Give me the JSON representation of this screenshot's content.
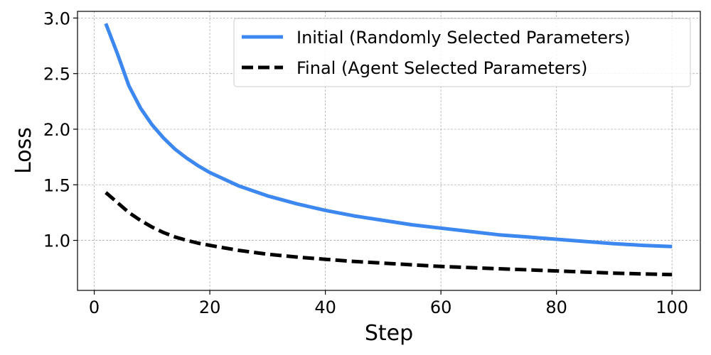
{
  "chart_data": {
    "type": "line",
    "title": "",
    "xlabel": "Step",
    "ylabel": "Loss",
    "xlim": [
      -2.9,
      104.9
    ],
    "ylim": [
      0.55,
      3.06
    ],
    "grid": true,
    "legend_position": "top-right",
    "xticks": [
      0,
      20,
      40,
      60,
      80,
      100
    ],
    "xtick_labels": [
      "0",
      "20",
      "40",
      "60",
      "80",
      "100"
    ],
    "yticks": [
      1.0,
      1.5,
      2.0,
      2.5,
      3.0
    ],
    "ytick_labels": [
      "1.0",
      "1.5",
      "2.0",
      "2.5",
      "3.0"
    ],
    "x": [
      2,
      4,
      6,
      8,
      10,
      12,
      14,
      16,
      18,
      20,
      25,
      30,
      35,
      40,
      45,
      50,
      55,
      60,
      65,
      70,
      75,
      80,
      85,
      90,
      95,
      100
    ],
    "series": [
      {
        "name": "Initial (Randomly Selected Parameters)",
        "color": "#3c87f0",
        "dash": "solid",
        "values": [
          2.95,
          2.68,
          2.39,
          2.19,
          2.04,
          1.92,
          1.82,
          1.74,
          1.67,
          1.61,
          1.49,
          1.4,
          1.33,
          1.27,
          1.22,
          1.18,
          1.14,
          1.11,
          1.08,
          1.05,
          1.03,
          1.01,
          0.99,
          0.97,
          0.955,
          0.945
        ]
      },
      {
        "name": "Final (Agent Selected Parameters)",
        "color": "#000000",
        "dash": "dashed",
        "values": [
          1.43,
          1.34,
          1.25,
          1.18,
          1.12,
          1.07,
          1.03,
          1.0,
          0.975,
          0.955,
          0.91,
          0.875,
          0.85,
          0.83,
          0.81,
          0.795,
          0.78,
          0.765,
          0.755,
          0.745,
          0.735,
          0.725,
          0.715,
          0.705,
          0.698,
          0.692
        ]
      }
    ]
  }
}
